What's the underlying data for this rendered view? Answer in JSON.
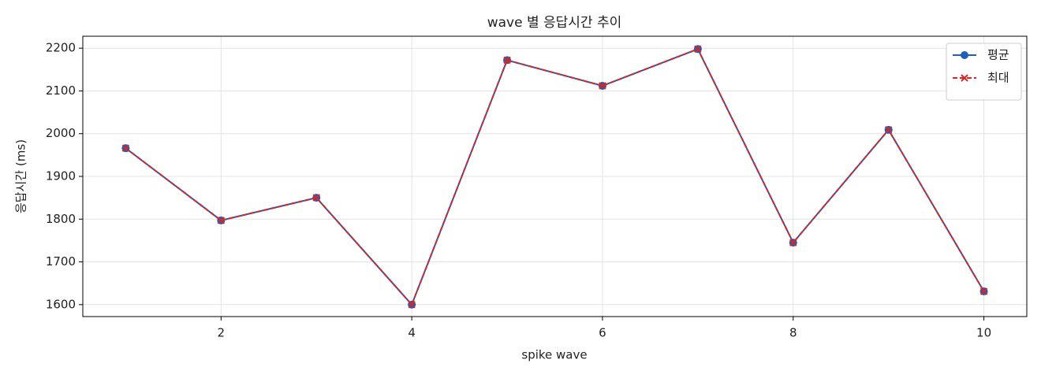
{
  "chart_data": {
    "type": "line",
    "title": "wave 별 응답시간 추이",
    "x_label": "spike wave",
    "y_label": "응답시간 (ms)",
    "x": [
      1,
      2,
      3,
      4,
      5,
      6,
      7,
      8,
      9,
      10
    ],
    "series": [
      {
        "name": "평균",
        "color": "#1f5fb8",
        "marker": "o",
        "linestyle": "solid",
        "values": [
          1966,
          1797,
          1850,
          1600,
          2172,
          2112,
          2198,
          1745,
          2009,
          1631
        ]
      },
      {
        "name": "최대",
        "color": "#d62728",
        "marker": "x",
        "linestyle": "dashed",
        "values": [
          1966,
          1797,
          1850,
          1600,
          2172,
          2112,
          2198,
          1745,
          2009,
          1631
        ]
      }
    ],
    "xlim": [
      0.55,
      10.45
    ],
    "xticks": [
      2,
      4,
      6,
      8,
      10
    ],
    "ylim": [
      1572,
      2228
    ],
    "yticks": [
      1600,
      1700,
      1800,
      1900,
      2000,
      2100,
      2200
    ],
    "grid": true,
    "legend": "upper right"
  }
}
